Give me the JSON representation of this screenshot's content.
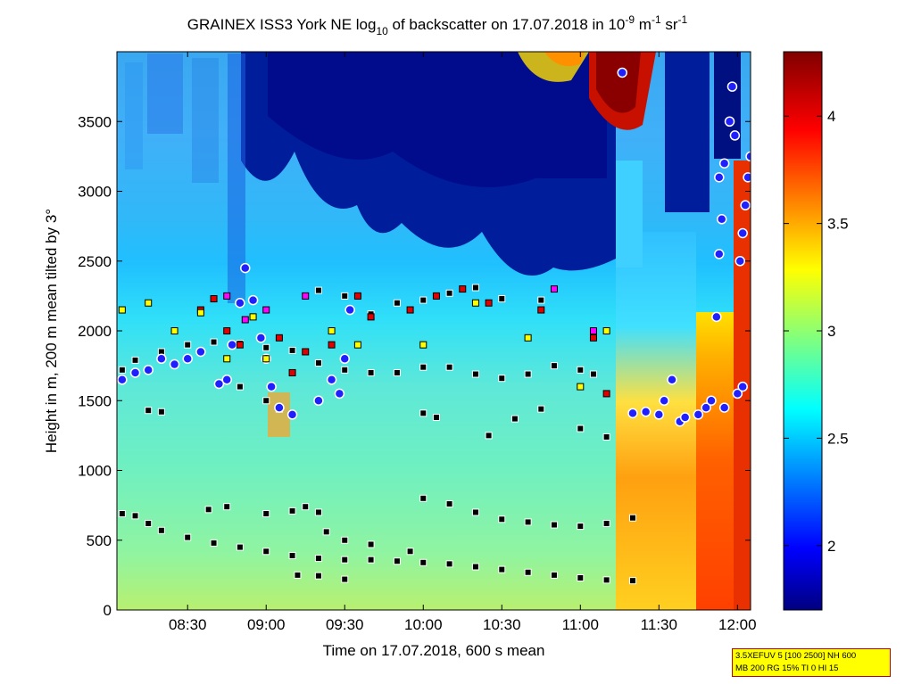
{
  "title": {
    "prefix": "GRAINEX ISS3 York NE log",
    "log_base": "10",
    "middle": " of backscatter on 17.07.2018 in 10",
    "exp1": "-9",
    "unit1": " m",
    "exp2": "-1",
    "unit2": " sr",
    "exp3": "-1"
  },
  "xlabel": "Time on 17.07.2018, 600 s mean",
  "ylabel": "Height in m, 200 m mean tilted by 3°",
  "info_box": {
    "line1": "3.5XEFUV 5 [100 2500] NH 600",
    "line2": "MB 200 RG 15% TI 0 HI 15"
  },
  "colors": {
    "background": "#ffffff",
    "high": "#800000",
    "mid": "#00ffff",
    "low": "#000080",
    "marker_black": "#000000",
    "marker_red": "#e00000",
    "marker_yellow": "#ffff00",
    "marker_magenta": "#ff00ff",
    "marker_blue": "#2020ff"
  },
  "chart_data": {
    "type": "heatmap",
    "xlim": [
      "08:03",
      "12:05"
    ],
    "ylim": [
      0,
      4000
    ],
    "x_ticks": [
      "08:30",
      "09:00",
      "09:30",
      "10:00",
      "10:30",
      "11:00",
      "11:30",
      "12:00"
    ],
    "y_ticks": [
      0,
      500,
      1000,
      1500,
      2000,
      2500,
      3000,
      3500
    ],
    "colorbar": {
      "colormap": "jet",
      "range": [
        1.7,
        4.3
      ],
      "ticks": [
        "2",
        "2.5",
        "3",
        "3.5",
        "4"
      ]
    },
    "series": [
      {
        "marker": "square-black",
        "points": [
          [
            "08:05",
            690
          ],
          [
            "08:10",
            675
          ],
          [
            "08:15",
            620
          ],
          [
            "08:20",
            570
          ],
          [
            "08:30",
            520
          ],
          [
            "08:40",
            480
          ],
          [
            "08:50",
            450
          ],
          [
            "09:00",
            420
          ],
          [
            "09:10",
            390
          ],
          [
            "09:20",
            370
          ],
          [
            "09:30",
            360
          ],
          [
            "09:40",
            360
          ],
          [
            "09:50",
            350
          ],
          [
            "10:00",
            340
          ],
          [
            "10:10",
            330
          ],
          [
            "10:20",
            310
          ],
          [
            "10:30",
            290
          ],
          [
            "10:40",
            270
          ],
          [
            "10:50",
            250
          ],
          [
            "11:00",
            230
          ],
          [
            "11:10",
            215
          ],
          [
            "11:20",
            210
          ],
          [
            "09:12",
            250
          ],
          [
            "09:20",
            245
          ],
          [
            "09:30",
            220
          ],
          [
            "08:38",
            720
          ],
          [
            "08:45",
            740
          ],
          [
            "09:00",
            690
          ],
          [
            "09:10",
            710
          ],
          [
            "09:15",
            740
          ],
          [
            "09:20",
            700
          ],
          [
            "09:23",
            560
          ],
          [
            "09:30",
            500
          ],
          [
            "09:40",
            470
          ],
          [
            "09:55",
            420
          ],
          [
            "10:00",
            800
          ],
          [
            "10:10",
            760
          ],
          [
            "10:20",
            700
          ],
          [
            "10:30",
            650
          ],
          [
            "10:40",
            630
          ],
          [
            "10:50",
            610
          ],
          [
            "11:00",
            600
          ],
          [
            "11:10",
            620
          ],
          [
            "11:20",
            660
          ],
          [
            "08:05",
            1720
          ],
          [
            "08:10",
            1790
          ],
          [
            "08:20",
            1850
          ],
          [
            "08:30",
            1900
          ],
          [
            "08:40",
            1920
          ],
          [
            "08:50",
            1910
          ],
          [
            "09:00",
            1880
          ],
          [
            "09:10",
            1860
          ],
          [
            "09:20",
            1770
          ],
          [
            "09:30",
            1720
          ],
          [
            "09:40",
            1700
          ],
          [
            "09:50",
            1700
          ],
          [
            "10:00",
            1740
          ],
          [
            "10:10",
            1740
          ],
          [
            "10:20",
            1690
          ],
          [
            "10:30",
            1660
          ],
          [
            "10:40",
            1690
          ],
          [
            "10:50",
            1750
          ],
          [
            "11:00",
            1720
          ],
          [
            "11:05",
            1690
          ],
          [
            "10:00",
            1410
          ],
          [
            "10:05",
            1380
          ],
          [
            "10:25",
            1250
          ],
          [
            "10:35",
            1370
          ],
          [
            "10:45",
            1440
          ],
          [
            "11:00",
            1300
          ],
          [
            "11:10",
            1240
          ],
          [
            "08:50",
            1600
          ],
          [
            "09:00",
            1500
          ],
          [
            "09:05",
            1440
          ],
          [
            "09:20",
            2290
          ],
          [
            "09:30",
            2250
          ],
          [
            "09:40",
            2120
          ],
          [
            "09:50",
            2200
          ],
          [
            "10:00",
            2220
          ],
          [
            "10:10",
            2270
          ],
          [
            "10:20",
            2310
          ],
          [
            "10:30",
            2230
          ],
          [
            "10:45",
            2220
          ],
          [
            "08:15",
            1430
          ],
          [
            "08:20",
            1420
          ]
        ]
      },
      {
        "marker": "circle-blue",
        "points": [
          [
            "08:05",
            1650
          ],
          [
            "08:10",
            1700
          ],
          [
            "08:15",
            1720
          ],
          [
            "08:20",
            1800
          ],
          [
            "08:25",
            1760
          ],
          [
            "08:30",
            1800
          ],
          [
            "08:35",
            1850
          ],
          [
            "08:42",
            1620
          ],
          [
            "08:45",
            1650
          ],
          [
            "08:47",
            1900
          ],
          [
            "08:50",
            2200
          ],
          [
            "08:52",
            2450
          ],
          [
            "08:55",
            2220
          ],
          [
            "08:58",
            1950
          ],
          [
            "09:00",
            1800
          ],
          [
            "09:02",
            1600
          ],
          [
            "09:05",
            1450
          ],
          [
            "09:10",
            1400
          ],
          [
            "09:20",
            1500
          ],
          [
            "09:25",
            1650
          ],
          [
            "09:28",
            1550
          ],
          [
            "09:30",
            1800
          ],
          [
            "09:32",
            2150
          ],
          [
            "11:20",
            1410
          ],
          [
            "11:25",
            1420
          ],
          [
            "11:30",
            1400
          ],
          [
            "11:32",
            1500
          ],
          [
            "11:35",
            1650
          ],
          [
            "11:38",
            1350
          ],
          [
            "11:40",
            1380
          ],
          [
            "11:45",
            1400
          ],
          [
            "11:48",
            1450
          ],
          [
            "11:50",
            1500
          ],
          [
            "11:55",
            1450
          ],
          [
            "12:00",
            1550
          ],
          [
            "12:02",
            1600
          ],
          [
            "11:52",
            2100
          ],
          [
            "11:53",
            2550
          ],
          [
            "11:54",
            2800
          ],
          [
            "11:53",
            3100
          ],
          [
            "11:55",
            3200
          ],
          [
            "11:57",
            3500
          ],
          [
            "11:58",
            3750
          ],
          [
            "11:59",
            3400
          ],
          [
            "12:01",
            2500
          ],
          [
            "12:02",
            2700
          ],
          [
            "12:03",
            2900
          ],
          [
            "12:04",
            3100
          ],
          [
            "12:05",
            3250
          ],
          [
            "11:16",
            3850
          ]
        ]
      },
      {
        "marker": "square-red",
        "points": [
          [
            "08:35",
            2150
          ],
          [
            "08:40",
            2230
          ],
          [
            "08:45",
            2000
          ],
          [
            "08:50",
            1900
          ],
          [
            "09:05",
            1950
          ],
          [
            "09:10",
            1700
          ],
          [
            "09:15",
            1850
          ],
          [
            "09:25",
            1900
          ],
          [
            "09:35",
            2250
          ],
          [
            "09:40",
            2100
          ],
          [
            "09:55",
            2150
          ],
          [
            "10:05",
            2250
          ],
          [
            "10:15",
            2300
          ],
          [
            "10:25",
            2200
          ],
          [
            "10:45",
            2150
          ],
          [
            "11:05",
            1950
          ],
          [
            "11:10",
            1550
          ]
        ]
      },
      {
        "marker": "square-yellow",
        "points": [
          [
            "08:05",
            2150
          ],
          [
            "08:15",
            2200
          ],
          [
            "08:25",
            2000
          ],
          [
            "08:35",
            2130
          ],
          [
            "08:45",
            1800
          ],
          [
            "08:55",
            2100
          ],
          [
            "09:00",
            1800
          ],
          [
            "09:25",
            2000
          ],
          [
            "09:35",
            1900
          ],
          [
            "10:00",
            1900
          ],
          [
            "10:20",
            2200
          ],
          [
            "10:40",
            1950
          ],
          [
            "11:00",
            1600
          ],
          [
            "11:10",
            2000
          ]
        ]
      },
      {
        "marker": "square-magenta",
        "points": [
          [
            "08:45",
            2250
          ],
          [
            "08:52",
            2080
          ],
          [
            "09:00",
            2150
          ],
          [
            "09:15",
            2250
          ],
          [
            "10:50",
            2300
          ],
          [
            "11:05",
            2000
          ]
        ]
      }
    ]
  }
}
